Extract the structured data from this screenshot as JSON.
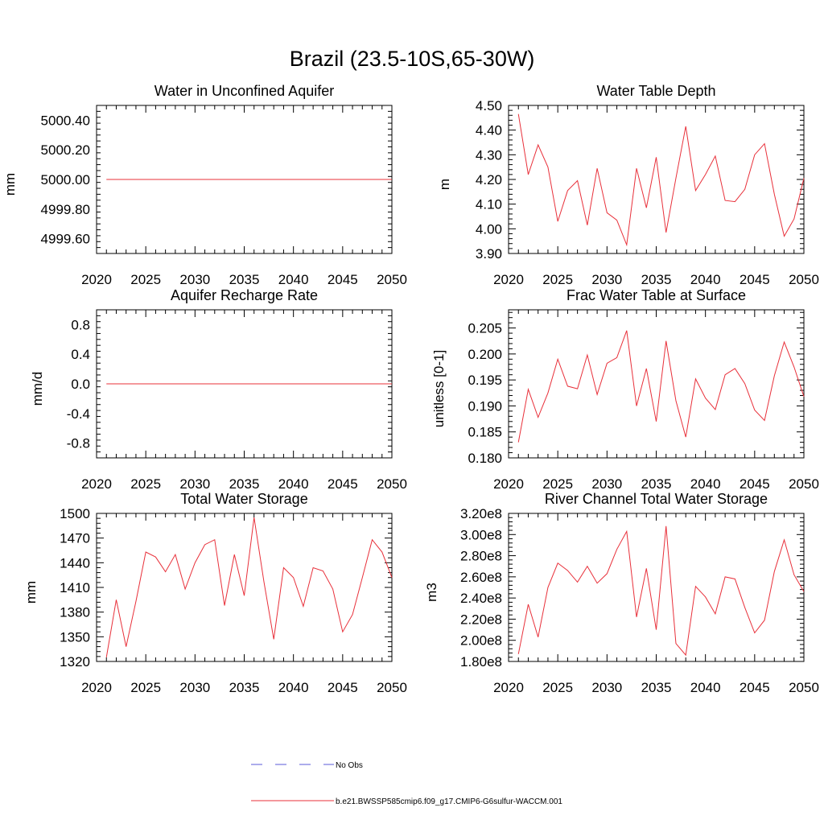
{
  "figure": {
    "title": "Brazil (23.5-10S,65-30W)"
  },
  "legend": {
    "entries": [
      {
        "label": "No Obs",
        "color": "#5a5ad8",
        "dashed": true
      },
      {
        "label": "b.e21.BWSSP585cmip6.f09_g17.CMIP6-G6sulfur-WACCM.001",
        "color": "#e8303a",
        "dashed": false
      }
    ]
  },
  "chart_data": [
    {
      "type": "line",
      "title": "Water in Unconfined Aquifer",
      "ylabel": "mm",
      "xlim": [
        2020,
        2050
      ],
      "ylim": [
        4999.5,
        5000.5
      ],
      "x_ticks": [
        2020,
        2025,
        2030,
        2035,
        2040,
        2045,
        2050
      ],
      "y_ticks": [
        4999.6,
        4999.8,
        5000.0,
        5000.2,
        5000.4
      ],
      "y_tick_labels": [
        "4999.60",
        "4999.80",
        "5000.00",
        "5000.20",
        "5000.40"
      ],
      "x": [
        2021,
        2050
      ],
      "series": [
        {
          "values": [
            5000.0,
            5000.0
          ],
          "color": "#e8303a"
        }
      ]
    },
    {
      "type": "line",
      "title": "Water Table Depth",
      "ylabel": "m",
      "xlim": [
        2020,
        2050
      ],
      "ylim": [
        3.9,
        4.5
      ],
      "x_ticks": [
        2020,
        2025,
        2030,
        2035,
        2040,
        2045,
        2050
      ],
      "y_ticks": [
        3.9,
        4.0,
        4.1,
        4.2,
        4.3,
        4.4,
        4.5
      ],
      "y_tick_labels": [
        "3.90",
        "4.00",
        "4.10",
        "4.20",
        "4.30",
        "4.40",
        "4.50"
      ],
      "x": [
        2021,
        2022,
        2023,
        2024,
        2025,
        2026,
        2027,
        2028,
        2029,
        2030,
        2031,
        2032,
        2033,
        2034,
        2035,
        2036,
        2037,
        2038,
        2039,
        2040,
        2041,
        2042,
        2043,
        2044,
        2045,
        2046,
        2047,
        2048,
        2049,
        2050
      ],
      "series": [
        {
          "values": [
            4.465,
            4.22,
            4.34,
            4.25,
            4.03,
            4.155,
            4.195,
            4.015,
            4.245,
            4.065,
            4.035,
            3.935,
            4.245,
            4.085,
            4.29,
            3.985,
            4.205,
            4.415,
            4.155,
            4.22,
            4.295,
            4.115,
            4.11,
            4.16,
            4.3,
            4.345,
            4.14,
            3.97,
            4.04,
            4.205
          ],
          "color": "#e8303a"
        }
      ]
    },
    {
      "type": "line",
      "title": "Aquifer Recharge Rate",
      "ylabel": "mm/d",
      "xlim": [
        2020,
        2050
      ],
      "ylim": [
        -1.0,
        1.0
      ],
      "x_ticks": [
        2020,
        2025,
        2030,
        2035,
        2040,
        2045,
        2050
      ],
      "y_ticks": [
        -0.8,
        -0.4,
        0.0,
        0.4,
        0.8
      ],
      "y_tick_labels": [
        "-0.8",
        "-0.4",
        "0.0",
        "0.4",
        "0.8"
      ],
      "x": [
        2021,
        2050
      ],
      "series": [
        {
          "values": [
            0.0,
            0.0
          ],
          "color": "#e8303a"
        }
      ]
    },
    {
      "type": "line",
      "title": "Frac Water Table at Surface",
      "ylabel": "unitless [0-1]",
      "xlim": [
        2020,
        2050
      ],
      "ylim": [
        0.18,
        0.2085
      ],
      "x_ticks": [
        2020,
        2025,
        2030,
        2035,
        2040,
        2045,
        2050
      ],
      "y_ticks": [
        0.18,
        0.185,
        0.19,
        0.195,
        0.2,
        0.205
      ],
      "y_tick_labels": [
        "0.180",
        "0.185",
        "0.190",
        "0.195",
        "0.200",
        "0.205"
      ],
      "x": [
        2021,
        2022,
        2023,
        2024,
        2025,
        2026,
        2027,
        2028,
        2029,
        2030,
        2031,
        2032,
        2033,
        2034,
        2035,
        2036,
        2037,
        2038,
        2039,
        2040,
        2041,
        2042,
        2043,
        2044,
        2045,
        2046,
        2047,
        2048,
        2049,
        2050
      ],
      "series": [
        {
          "values": [
            0.183,
            0.1932,
            0.1878,
            0.1925,
            0.199,
            0.1938,
            0.1933,
            0.1998,
            0.1922,
            0.1982,
            0.1993,
            0.2045,
            0.19,
            0.1972,
            0.187,
            0.2025,
            0.191,
            0.184,
            0.1952,
            0.1915,
            0.1893,
            0.196,
            0.1972,
            0.1943,
            0.1892,
            0.1872,
            0.1958,
            0.2023,
            0.1975,
            0.1918
          ],
          "color": "#e8303a"
        }
      ]
    },
    {
      "type": "line",
      "title": "Total Water Storage",
      "ylabel": "mm",
      "xlim": [
        2020,
        2050
      ],
      "ylim": [
        1320,
        1500
      ],
      "x_ticks": [
        2020,
        2025,
        2030,
        2035,
        2040,
        2045,
        2050
      ],
      "y_ticks": [
        1320,
        1350,
        1380,
        1410,
        1440,
        1470,
        1500
      ],
      "y_tick_labels": [
        "1320",
        "1350",
        "1380",
        "1410",
        "1440",
        "1470",
        "1500"
      ],
      "x": [
        2021,
        2022,
        2023,
        2024,
        2025,
        2026,
        2027,
        2028,
        2029,
        2030,
        2031,
        2032,
        2033,
        2034,
        2035,
        2036,
        2037,
        2038,
        2039,
        2040,
        2041,
        2042,
        2043,
        2044,
        2045,
        2046,
        2047,
        2048,
        2049,
        2050
      ],
      "series": [
        {
          "values": [
            1325,
            1395,
            1338,
            1393,
            1453,
            1447,
            1429,
            1450,
            1408,
            1440,
            1462,
            1468,
            1388,
            1450,
            1400,
            1495,
            1417,
            1347,
            1434,
            1422,
            1387,
            1434,
            1430,
            1408,
            1356,
            1377,
            1422,
            1468,
            1453,
            1422
          ],
          "color": "#e8303a"
        }
      ]
    },
    {
      "type": "line",
      "title": "River Channel Total Water Storage",
      "ylabel": "m3",
      "xlim": [
        2020,
        2050
      ],
      "ylim": [
        180000000,
        320000000
      ],
      "x_ticks": [
        2020,
        2025,
        2030,
        2035,
        2040,
        2045,
        2050
      ],
      "y_ticks": [
        180000000,
        200000000,
        220000000,
        240000000,
        260000000,
        280000000,
        300000000,
        320000000
      ],
      "y_tick_labels": [
        "1.80e8",
        "2.00e8",
        "2.20e8",
        "2.40e8",
        "2.60e8",
        "2.80e8",
        "3.00e8",
        "3.20e8"
      ],
      "x": [
        2021,
        2022,
        2023,
        2024,
        2025,
        2026,
        2027,
        2028,
        2029,
        2030,
        2031,
        2032,
        2033,
        2034,
        2035,
        2036,
        2037,
        2038,
        2039,
        2040,
        2041,
        2042,
        2043,
        2044,
        2045,
        2046,
        2047,
        2048,
        2049,
        2050
      ],
      "series": [
        {
          "values": [
            187000000,
            234000000,
            203000000,
            250000000,
            273000000,
            266000000,
            255000000,
            270000000,
            254000000,
            263000000,
            286000000,
            303000000,
            222000000,
            268000000,
            210000000,
            308000000,
            197000000,
            186000000,
            251000000,
            241000000,
            225000000,
            260000000,
            258000000,
            231000000,
            207000000,
            219000000,
            265000000,
            295000000,
            262000000,
            246000000
          ],
          "color": "#e8303a"
        }
      ]
    }
  ]
}
